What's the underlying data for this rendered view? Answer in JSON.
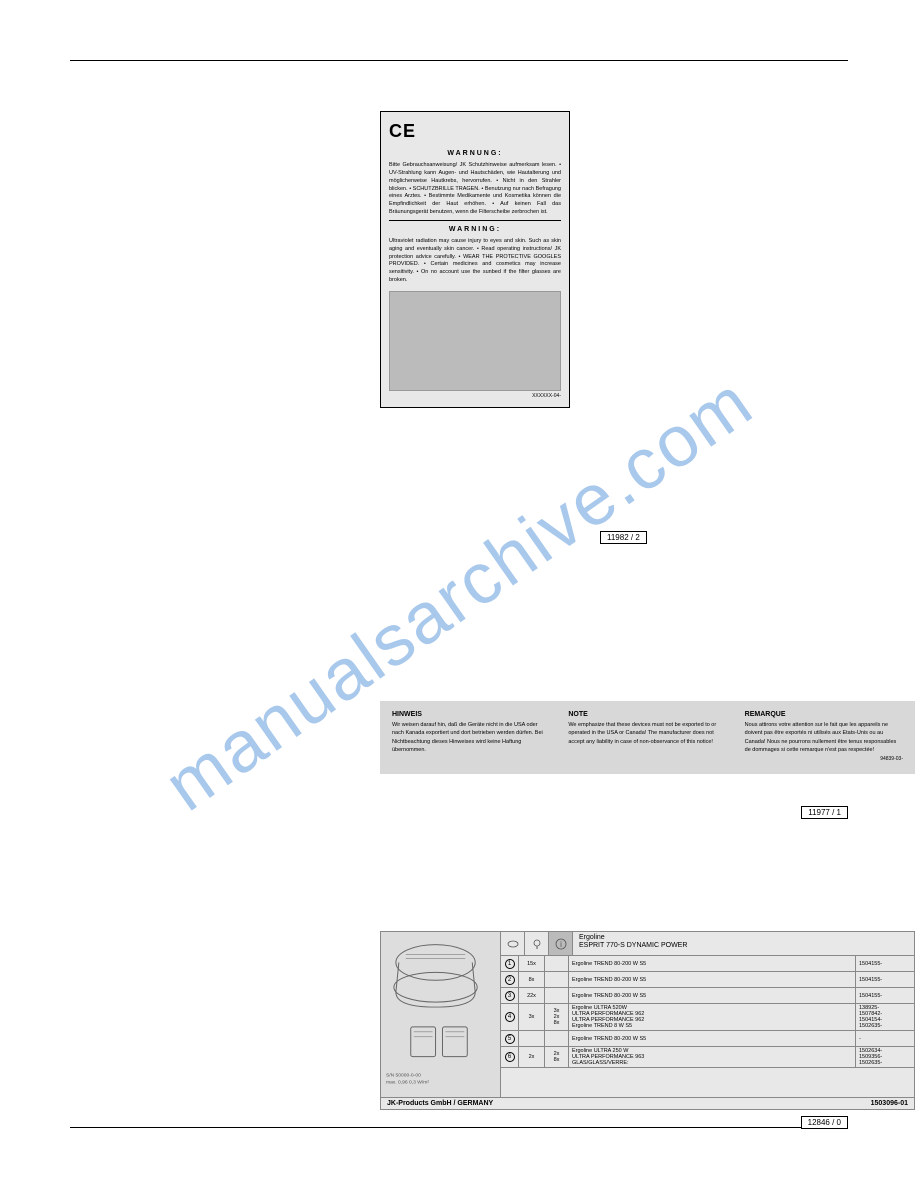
{
  "watermark": "manualsarchive.com",
  "warning_label": {
    "ce": "CE",
    "warnung_title": "WARNUNG:",
    "warnung_text": "Bitte Gebrauchsanweisung/ JK Schutzhinweise aufmerksam lesen. • UV-Strahlung kann Augen- und Hautschäden, wie Hautalterung und möglicherweise Hautkrebs, hervorrufen. • Nicht in den Strahler blicken. • SCHUTZBRILLE TRAGEN. • Benutzung nur nach Befragung eines Arztes. • Bestimmte Medikamente und Kosmetika können die Empfindlichkeit der Haut erhöhen. • Auf keinen Fall das Bräunungsgerät benutzen, wenn die Filterscheibe zerbrochen ist.",
    "warning_title": "WARNING:",
    "warning_text": "Ultraviolet radiation may cause injury to eyes and skin. Such as skin aging and eventually skin cancer. • Read operating instructions/ JK protection advice carefully. • WEAR THE PROTECTIVE GOOGLES PROVIDED. • Certain medicines and cosmetics may increase sensitivity. • On no account use the sunbed if the filter glasses are broken.",
    "code": "XXXXXX-04-",
    "fig_ref": "11982 / 2"
  },
  "note_box": {
    "hinweis_head": "HINWEIS",
    "hinweis_text": "Wir weisen darauf hin, daß die Geräte nicht in die USA oder nach Kanada exportiert und dort betrieben werden dürfen. Bei Nichtbeachtung dieses Hinweises wird keine Haftung übernommen.",
    "note_head": "NOTE",
    "note_text": "We emphasize that these devices must not be exported to or operated in the USA or Canada! The manufacturer does not accept any liability in case of non-observance of this notice!",
    "remarque_head": "REMARQUE",
    "remarque_text": "Nous attirons votre attention sur le fait que les appareils ne doivent pas être exportés ni utilisés aux Etats-Unis ou au Canada! Nous ne pourrons nullement être tenus responsables de dommages si cette remarque n'est pas respectée!",
    "code": "94839-03-",
    "fig_ref": "11977 / 1"
  },
  "spec_table": {
    "brand": "Ergoline",
    "model": "ESPRIT 770-S DYNAMIC POWER",
    "rows": [
      {
        "n": "1",
        "qty": "15x",
        "sub": "",
        "desc": "Ergoline TREND 80-200 W S5",
        "code": "1504155-"
      },
      {
        "n": "2",
        "qty": "8x",
        "sub": "",
        "desc": "Ergoline TREND 80-200 W S5",
        "code": "1504155-"
      },
      {
        "n": "3",
        "qty": "22x",
        "sub": "",
        "desc": "Ergoline TREND 80-200 W S5",
        "code": "1504155-"
      },
      {
        "n": "4",
        "qty": "3x",
        "sub": "3x\n2x\n8x",
        "desc": "Ergoline ULTRA 520W\nULTRA PERFORMANCE 962\nULTRA PERFORMANCE 962\nErgoline TREND 8 W S5",
        "code": "138925-\n1507842-\n1504154-\n1502635-"
      },
      {
        "n": "5",
        "qty": "",
        "sub": "",
        "desc": "Ergoline TREND 80-200 W S5",
        "code": "-"
      },
      {
        "n": "6",
        "qty": "2x",
        "sub": "2x\n8x",
        "desc": "Ergoline ULTRA 250 W\nULTRA PERFORMANCE 963\nGLAS/GLASS/VERRE:",
        "code": "1502634-\n1509356-\n1502635-"
      }
    ],
    "bottom_left": "S/N 50000-0-00\nmax. 0,96 0,3 W/m²",
    "footer_company": "JK-Products GmbH / GERMANY",
    "footer_code": "1503096-01",
    "fig_ref": "12846 / 0"
  }
}
